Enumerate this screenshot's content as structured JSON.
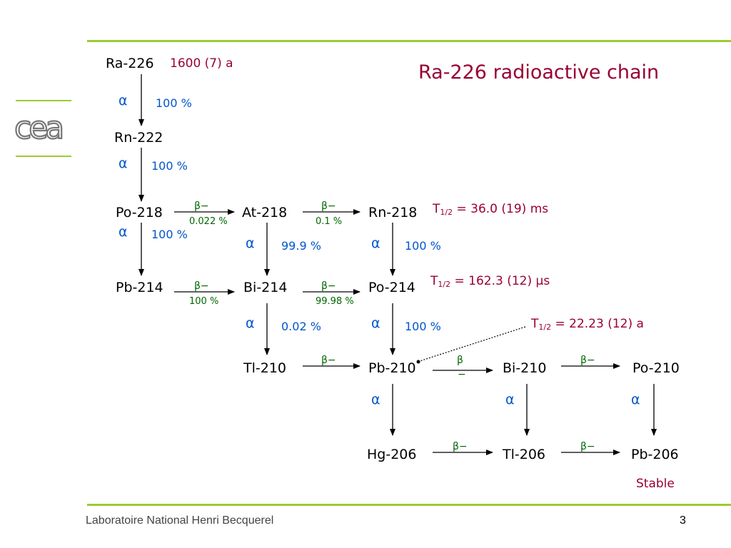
{
  "title": "Ra-226 radioactive chain",
  "footer": "Laboratoire National Henri Becquerel",
  "page_number": "3",
  "colors": {
    "accent_green": "#99cc33",
    "title_red": "#990033",
    "alpha_blue": "#0055cc",
    "beta_green": "#006600"
  },
  "logo": {
    "text": "cea"
  },
  "nuclides": {
    "ra226": "Ra-226",
    "rn222": "Rn-222",
    "po218": "Po-218",
    "at218": "At-218",
    "rn218": "Rn-218",
    "pb214": "Pb-214",
    "bi214": "Bi-214",
    "po214": "Po-214",
    "tl210": "Tl-210",
    "pb210": "Pb-210",
    "bi210": "Bi-210",
    "po210": "Po-210",
    "hg206": "Hg-206",
    "tl206": "Tl-206",
    "pb206": "Pb-206"
  },
  "ra226_halflife": "1600 (7) a",
  "stable_label": "Stable",
  "half_lives": {
    "rn218": {
      "prefix": "T",
      "sub": "1/2",
      "value": " = 36.0 (19) ms"
    },
    "po214": {
      "prefix": "T",
      "sub": "1/2",
      "value_before": " = 162.3 (12) ",
      "mu": "μ",
      "value_after": "s"
    },
    "pb210": {
      "prefix": "T",
      "sub": "1/2",
      "value": " = 22.23 (12) a"
    }
  },
  "symbols": {
    "alpha": "α",
    "beta": "β−",
    "beta_b": "β",
    "beta_minus": "−"
  },
  "branch_pct": {
    "ra226_alpha": "100 %",
    "rn222_alpha": "100 %",
    "po218_alpha": "100 %",
    "po218_beta": "0.022 %",
    "at218_alpha": "99.9 %",
    "at218_beta": "0.1 %",
    "rn218_alpha": "100 %",
    "pb214_beta": "100 %",
    "bi214_alpha": "0.02 %",
    "bi214_beta": "99.98 %",
    "po214_alpha": "100 %"
  }
}
